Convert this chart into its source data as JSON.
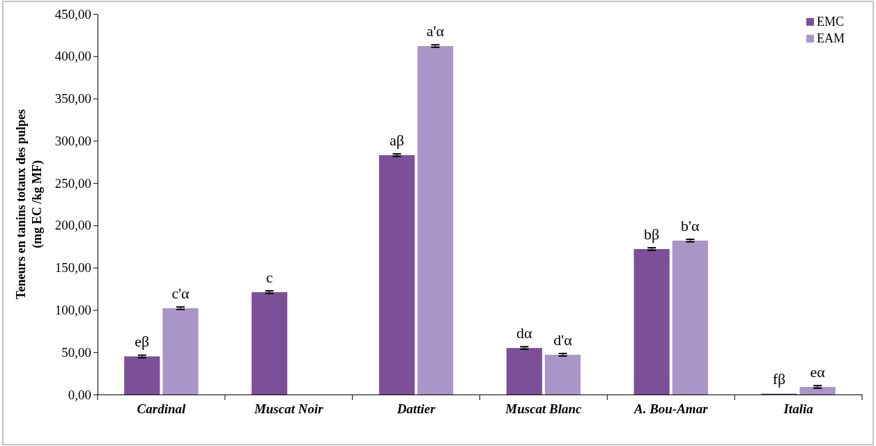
{
  "chart_data": {
    "type": "bar",
    "categories": [
      "Cardinal",
      "Muscat Noir",
      "Dattier",
      "Muscat Blanc",
      "A. Bou-Amar",
      "Italia"
    ],
    "ylabel": "Teneurs en tanins totaux des pulpes\n(mg EC /kg MF)",
    "series": [
      {
        "name": "EMC",
        "color": "#7b5099",
        "values": [
          45,
          121,
          283,
          55,
          172,
          1
        ],
        "errors": [
          1.5,
          1.5,
          1.5,
          1.5,
          1.5,
          null
        ]
      },
      {
        "name": "EAM",
        "color": "#a995c7",
        "values": [
          102,
          null,
          412,
          47,
          182,
          9
        ],
        "errors": [
          1.5,
          null,
          1.5,
          1.5,
          1.5,
          1.5
        ]
      }
    ],
    "ylim": [
      0,
      450
    ],
    "yticks": [
      {
        "value": 0,
        "label": "0,00"
      },
      {
        "value": 50,
        "label": "50,00"
      },
      {
        "value": 100,
        "label": "100,00"
      },
      {
        "value": 150,
        "label": "150,00"
      },
      {
        "value": 200,
        "label": "200,00"
      },
      {
        "value": 250,
        "label": "250,00"
      },
      {
        "value": 300,
        "label": "300,00"
      },
      {
        "value": 350,
        "label": "350,00"
      },
      {
        "value": 400,
        "label": "400,00"
      },
      {
        "value": 450,
        "label": "450,00"
      }
    ],
    "legend": "top right",
    "annotations": [
      {
        "text": "eβ",
        "x": "Cardinal",
        "y": 45
      },
      {
        "text": "c'α",
        "x": "Cardinal",
        "y": 102
      },
      {
        "text": "c",
        "x": "Muscat Noir",
        "y": 121
      },
      {
        "text": "aβ",
        "x": "Dattier",
        "y": 283
      },
      {
        "text": "a'α",
        "x": "Dattier",
        "y": 412
      },
      {
        "text": "dα",
        "x": "Muscat Blanc",
        "y": 55
      },
      {
        "text": "d'α",
        "x": "Muscat Blanc",
        "y": 47
      },
      {
        "text": "bβ",
        "x": "A. Bou-Amar",
        "y": 172
      },
      {
        "text": "b'α",
        "x": "A. Bou-Amar",
        "y": 182
      },
      {
        "text": "fβ",
        "x": "Italia",
        "y": 1
      },
      {
        "text": "eα",
        "x": "Italia",
        "y": 9
      }
    ]
  }
}
